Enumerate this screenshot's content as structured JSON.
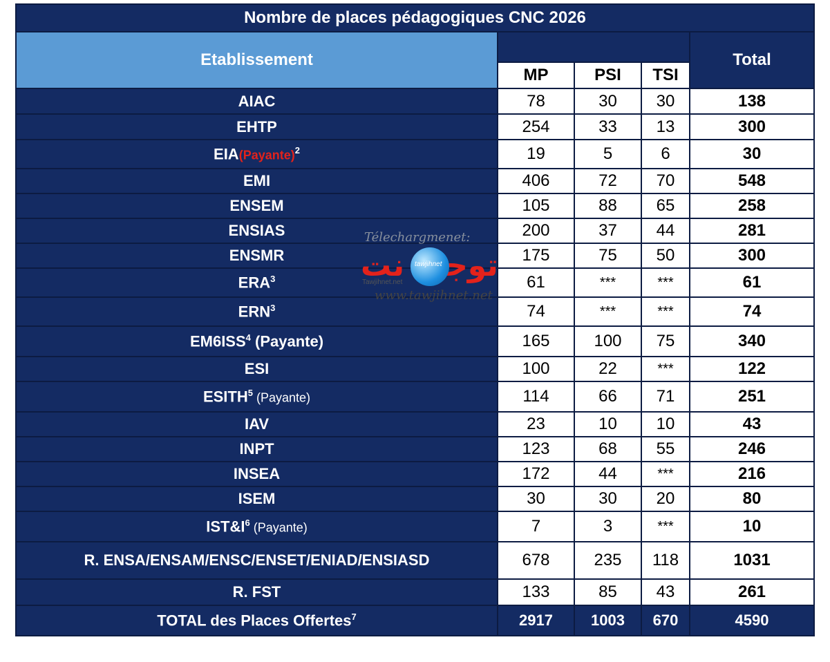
{
  "title": "Nombre de places pédagogiques CNC 2026",
  "headers": {
    "etablissement": "Etablissement",
    "mp": "MP",
    "psi": "PSI",
    "tsi": "TSI",
    "total": "Total"
  },
  "rows": [
    {
      "name": "AIAC",
      "mp": "78",
      "psi": "30",
      "tsi": "30",
      "total": "138"
    },
    {
      "name": "EHTP",
      "mp": "254",
      "psi": "33",
      "tsi": "13",
      "total": "300"
    },
    {
      "name": "EIA",
      "note": "(Payante)",
      "sup": "2",
      "mp": "19",
      "psi": "5",
      "tsi": "6",
      "total": "30"
    },
    {
      "name": "EMI",
      "mp": "406",
      "psi": "72",
      "tsi": "70",
      "total": "548"
    },
    {
      "name": "ENSEM",
      "mp": "105",
      "psi": "88",
      "tsi": "65",
      "total": "258"
    },
    {
      "name": "ENSIAS",
      "mp": "200",
      "psi": "37",
      "tsi": "44",
      "total": "281"
    },
    {
      "name": "ENSMR",
      "mp": "175",
      "psi": "75",
      "tsi": "50",
      "total": "300"
    },
    {
      "name": "ERA",
      "sup": "3",
      "mp": "61",
      "psi": "***",
      "tsi": "***",
      "total": "61"
    },
    {
      "name": "ERN",
      "sup": "3",
      "mp": "74",
      "psi": "***",
      "tsi": "***",
      "total": "74"
    },
    {
      "name": "EM6ISS",
      "sup": "4",
      "note": " (Payante)",
      "mp": "165",
      "psi": "100",
      "tsi": "75",
      "total": "340"
    },
    {
      "name": "ESI",
      "mp": "100",
      "psi": "22",
      "tsi": "***",
      "total": "122"
    },
    {
      "name": "ESITH",
      "sup": "5",
      "note": " (Payante)",
      "mp": "114",
      "psi": "66",
      "tsi": "71",
      "total": "251"
    },
    {
      "name": "IAV",
      "mp": "23",
      "psi": "10",
      "tsi": "10",
      "total": "43"
    },
    {
      "name": "INPT",
      "mp": "123",
      "psi": "68",
      "tsi": "55",
      "total": "246"
    },
    {
      "name": "INSEA",
      "mp": "172",
      "psi": "44",
      "tsi": "***",
      "total": "216"
    },
    {
      "name": "ISEM",
      "mp": "30",
      "psi": "30",
      "tsi": "20",
      "total": "80"
    },
    {
      "name": "IST&I",
      "sup": "6",
      "note": " (Payante)",
      "mp": "7",
      "psi": "3",
      "tsi": "***",
      "total": "10"
    },
    {
      "name": "R. ENSA/ENSAM/ENSC/ENSET/ENIAD/ENSIASD",
      "mp": "678",
      "psi": "235",
      "tsi": "118",
      "total": "1031"
    },
    {
      "name": "R. FST",
      "mp": "133",
      "psi": "85",
      "tsi": "43",
      "total": "261"
    }
  ],
  "footer": {
    "name": "TOTAL des Places Offertes",
    "sup": "7",
    "mp": "2917",
    "psi": "1003",
    "tsi": "670",
    "total": "4590"
  },
  "watermark": {
    "line1": "Télechargmenet:",
    "logo": "توجيه نت",
    "ball": "tawjihnet",
    "small": "Tawjihnet.net",
    "url": "www.tawjihnet.net"
  },
  "colors": {
    "navy": "#142b63",
    "header_blue": "#5b9bd5",
    "payante_red": "#e3221b"
  }
}
